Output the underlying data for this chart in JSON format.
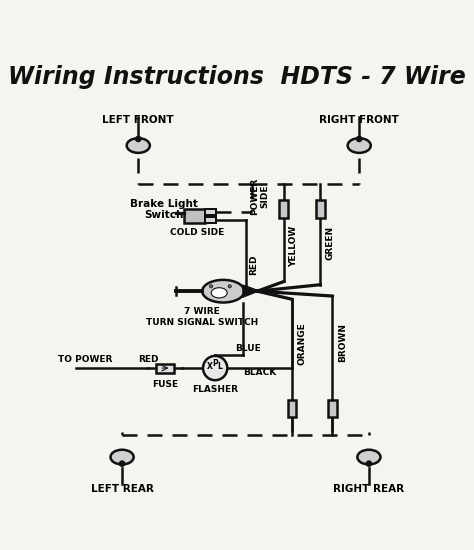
{
  "title": "Wiring Instructions  HDTS - 7 Wire",
  "bg_color": "#f5f5f0",
  "title_fontsize": 17,
  "label_fontsize": 7.5,
  "labels": {
    "left_front": "LEFT FRONT",
    "right_front": "RIGHT FRONT",
    "left_rear": "LEFT REAR",
    "right_rear": "RIGHT REAR",
    "brake_switch": "Brake Light\nSwitch",
    "cold_side": "COLD SIDE",
    "power_side": "POWER\nSIDE",
    "red_wire": "RED",
    "yellow_wire": "YELLOW",
    "green_wire": "GREEN",
    "orange_wire": "ORANGE",
    "brown_wire": "BROWN",
    "blue_wire": "BLUE",
    "black_wire": "BLACK",
    "seven_wire": "7 WIRE\nTURN SIGNAL SWITCH",
    "to_power": "TO POWER",
    "fuse": "FUSE",
    "flasher": "FLASHER"
  }
}
